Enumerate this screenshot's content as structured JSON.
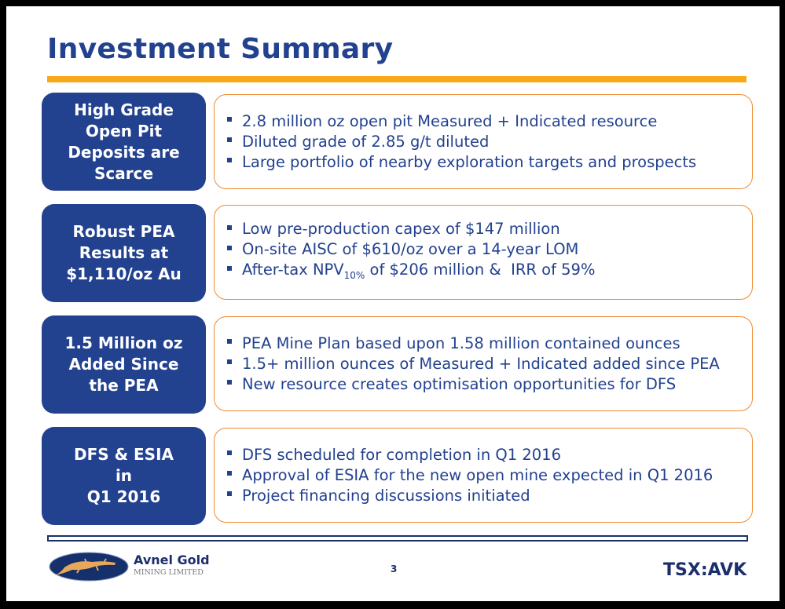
{
  "title": "Investment Summary",
  "rows": [
    {
      "label": "High Grade\nOpen Pit\nDeposits are\nScarce",
      "bullets": [
        "2.8 million oz open pit Measured + Indicated resource",
        "Diluted grade of 2.85 g/t diluted",
        "Large portfolio of nearby exploration targets and prospects"
      ]
    },
    {
      "label": "Robust PEA\nResults at\n$1,110/oz Au",
      "bullets": [
        "Low pre-production capex of $147 million",
        "On-site AISC of $610/oz over a 14-year LOM"
      ],
      "npv": {
        "pre": "After-tax NPV",
        "sub": "10%",
        "post": " of $206 million &  IRR of 59%"
      }
    },
    {
      "label": "1.5 Million oz\nAdded Since\nthe PEA",
      "bullets": [
        "PEA Mine Plan based upon 1.58 million contained ounces",
        "1.5+ million ounces of Measured + Indicated added since PEA",
        "New resource creates optimisation opportunities for DFS"
      ]
    },
    {
      "label": "DFS & ESIA\nin\nQ1 2016",
      "bullets": [
        "DFS scheduled for completion in Q1 2016",
        "Approval of ESIA for the new open mine expected in Q1 2016",
        "Project financing discussions initiated"
      ]
    }
  ],
  "footer": {
    "company": "Avnel Gold",
    "company_sub": "MINING LIMITED",
    "page": "3",
    "ticker": "TSX:AVK"
  }
}
